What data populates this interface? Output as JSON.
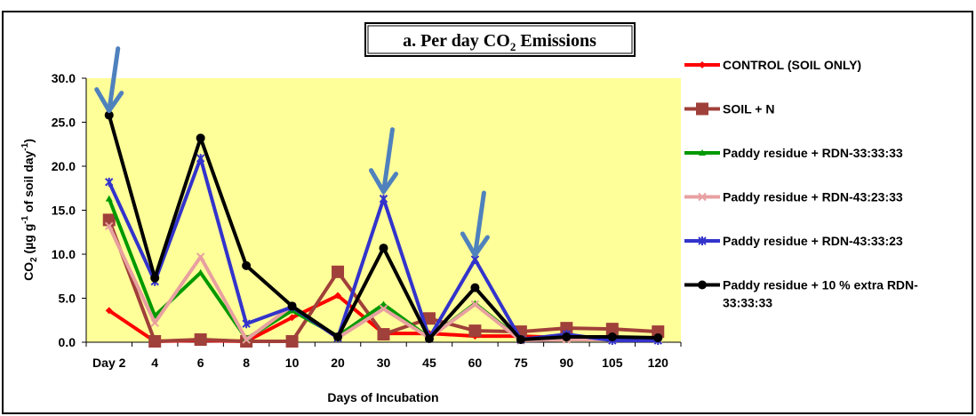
{
  "chart_data": {
    "type": "line",
    "title_main": "a. Per day CO",
    "title_sub": "2",
    "title_tail": " Emissions",
    "xlabel": "Days of Incubation",
    "ylabel": {
      "prefix": "CO",
      "sub2": "2",
      "mid": " (µg g",
      "sup1": "-1",
      "mid2": " of soil day",
      "sup2": "-1",
      "end": ")"
    },
    "categories": [
      "Day 2",
      "4",
      "6",
      "8",
      "10",
      "20",
      "30",
      "45",
      "60",
      "75",
      "90",
      "105",
      "120"
    ],
    "yticks": [
      "0.0",
      "5.0",
      "10.0",
      "15.0",
      "20.0",
      "25.0",
      "30.0"
    ],
    "ylim": [
      0,
      30
    ],
    "plot_bg": "#ffff99",
    "series": [
      {
        "name": "CONTROL (SOIL ONLY)",
        "color": "#ff0000",
        "marker": "diamond",
        "values": [
          3.6,
          0.1,
          0.2,
          0.1,
          2.8,
          5.3,
          1.0,
          1.0,
          0.7,
          0.7,
          0.5,
          0.4,
          0.3
        ]
      },
      {
        "name": "SOIL + N",
        "color": "#a0403a",
        "marker": "square",
        "values": [
          13.9,
          0.1,
          0.3,
          0.1,
          0.1,
          8.0,
          0.9,
          2.7,
          1.3,
          1.2,
          1.6,
          1.5,
          1.2
        ]
      },
      {
        "name": "Paddy residue + RDN-33:33:33",
        "color": "#009900",
        "marker": "triangle",
        "values": [
          16.3,
          3.0,
          7.9,
          0.4,
          3.6,
          0.7,
          4.3,
          0.5,
          4.4,
          0.3,
          0.4,
          0.3,
          0.3
        ]
      },
      {
        "name": "Paddy residue + RDN-43:23:33",
        "color": "#e8a0a0",
        "marker": "x",
        "values": [
          13.2,
          2.2,
          9.7,
          0.3,
          4.1,
          0.5,
          3.8,
          0.5,
          4.3,
          0.2,
          0.3,
          0.3,
          0.3
        ]
      },
      {
        "name": "Paddy residue + RDN-43:33:23",
        "color": "#3333cc",
        "marker": "star",
        "values": [
          18.2,
          6.9,
          20.9,
          2.1,
          4.0,
          0.5,
          16.3,
          0.5,
          9.4,
          0.3,
          0.9,
          0.2,
          0.2
        ]
      },
      {
        "name": "Paddy residue + 10 % extra RDN-",
        "name_line2": "33:33:33",
        "color": "#000000",
        "marker": "circle",
        "values": [
          25.8,
          7.3,
          23.2,
          8.7,
          4.1,
          0.6,
          10.7,
          0.4,
          6.2,
          0.3,
          0.6,
          0.6,
          0.5
        ]
      }
    ],
    "annotations": [
      {
        "type": "arrow",
        "category_index": 0,
        "value": 26.0
      },
      {
        "type": "arrow",
        "category_index": 6,
        "value": 16.8
      },
      {
        "type": "arrow",
        "category_index": 8,
        "value": 9.6
      }
    ],
    "arrow_color": "#4f81bd"
  }
}
